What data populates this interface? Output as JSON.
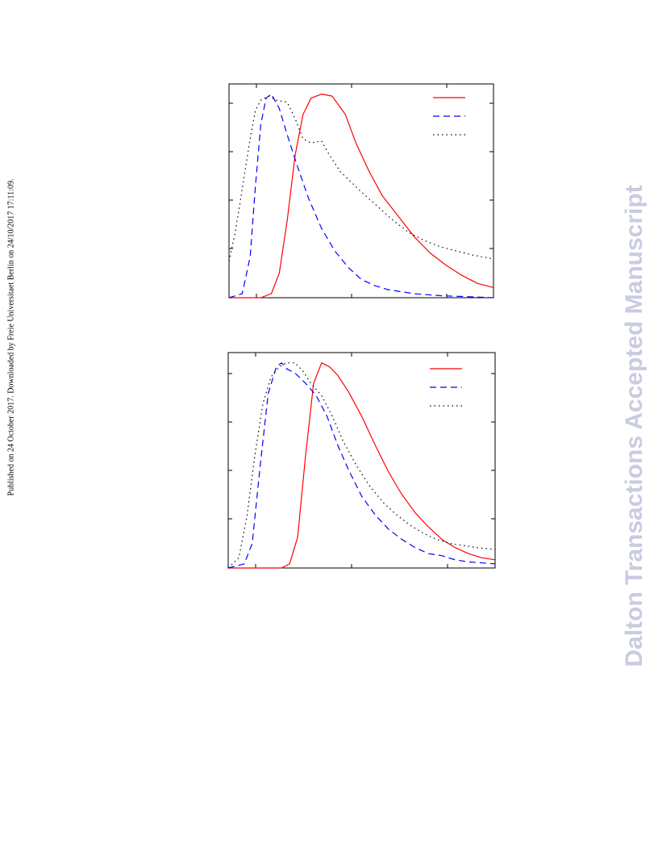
{
  "side_note": "Published on 24 October 2017. Downloaded by Freie Universitaet Berlin on 24/10/2017 17:11:09.",
  "watermark": "Dalton Transactions Accepted Manuscript",
  "watermark_color": "#c9cbe1",
  "chart_data": [
    {
      "type": "line",
      "title": "",
      "xlabel": "",
      "ylabel": "",
      "xlim": [
        0,
        10
      ],
      "ylim": [
        0,
        1.05
      ],
      "grid": false,
      "legend": "top-right",
      "series": [
        {
          "color": "#ff0000",
          "dash": "solid",
          "x": [
            0,
            1.2,
            1.6,
            1.9,
            2.2,
            2.5,
            2.8,
            3.1,
            3.5,
            3.9,
            4.4,
            4.8,
            5.3,
            5.8,
            6.4,
            7.0,
            7.6,
            8.2,
            8.8,
            9.4,
            10.0
          ],
          "y": [
            0,
            0,
            0.02,
            0.12,
            0.38,
            0.7,
            0.9,
            0.98,
            1.0,
            0.99,
            0.9,
            0.76,
            0.62,
            0.5,
            0.4,
            0.3,
            0.22,
            0.16,
            0.11,
            0.07,
            0.05
          ]
        },
        {
          "color": "#0000ff",
          "dash": "dashed",
          "x": [
            0,
            0.5,
            0.8,
            1.0,
            1.2,
            1.4,
            1.6,
            1.9,
            2.2,
            2.6,
            3.0,
            3.5,
            4.0,
            4.5,
            5.0,
            5.5,
            6.0,
            7.0,
            8.0,
            9.0,
            10.0
          ],
          "y": [
            0,
            0.02,
            0.2,
            0.55,
            0.85,
            0.98,
            1.0,
            0.93,
            0.8,
            0.64,
            0.49,
            0.34,
            0.23,
            0.15,
            0.09,
            0.06,
            0.04,
            0.02,
            0.01,
            0.005,
            0
          ]
        },
        {
          "color": "#000000",
          "dash": "dotted",
          "x": [
            0,
            0.2,
            0.4,
            0.6,
            0.8,
            1.0,
            1.2,
            1.5,
            1.8,
            2.2,
            2.5,
            2.8,
            3.1,
            3.5,
            3.8,
            4.2,
            4.6,
            5.0,
            5.6,
            6.2,
            6.8,
            7.4,
            8.0,
            8.6,
            9.2,
            10.0
          ],
          "y": [
            0.18,
            0.3,
            0.45,
            0.62,
            0.78,
            0.92,
            0.97,
            0.99,
            0.97,
            0.96,
            0.88,
            0.78,
            0.76,
            0.77,
            0.7,
            0.62,
            0.57,
            0.52,
            0.45,
            0.38,
            0.32,
            0.28,
            0.25,
            0.23,
            0.21,
            0.19
          ]
        }
      ]
    },
    {
      "type": "line",
      "title": "",
      "xlabel": "",
      "ylabel": "",
      "xlim": [
        0,
        10
      ],
      "ylim": [
        0,
        1.05
      ],
      "grid": false,
      "legend": "top-right",
      "series": [
        {
          "color": "#ff0000",
          "dash": "solid",
          "x": [
            0,
            2.0,
            2.3,
            2.6,
            2.9,
            3.2,
            3.5,
            3.8,
            4.1,
            4.5,
            5.0,
            5.5,
            6.0,
            6.5,
            7.0,
            7.5,
            8.0,
            8.5,
            9.0,
            9.5,
            10.0
          ],
          "y": [
            0,
            0,
            0.02,
            0.15,
            0.55,
            0.9,
            1.0,
            0.98,
            0.94,
            0.86,
            0.74,
            0.6,
            0.47,
            0.36,
            0.27,
            0.2,
            0.14,
            0.1,
            0.07,
            0.05,
            0.04
          ]
        },
        {
          "color": "#0000ff",
          "dash": "dashed",
          "x": [
            0,
            0.6,
            0.9,
            1.2,
            1.5,
            1.8,
            2.0,
            2.2,
            2.5,
            2.9,
            3.3,
            3.7,
            4.1,
            4.5,
            5.0,
            5.5,
            6.0,
            6.5,
            7.0,
            7.5,
            8.0,
            8.5,
            9.0,
            10.0
          ],
          "y": [
            0,
            0.02,
            0.12,
            0.5,
            0.85,
            0.98,
            1.0,
            0.97,
            0.95,
            0.9,
            0.84,
            0.74,
            0.6,
            0.48,
            0.35,
            0.26,
            0.19,
            0.14,
            0.1,
            0.07,
            0.06,
            0.04,
            0.03,
            0.02
          ]
        },
        {
          "color": "#000000",
          "dash": "dotted",
          "x": [
            0,
            0.4,
            0.7,
            1.0,
            1.3,
            1.6,
            1.9,
            2.2,
            2.5,
            2.8,
            3.1,
            3.5,
            3.9,
            4.3,
            4.8,
            5.3,
            5.8,
            6.3,
            6.8,
            7.3,
            7.8,
            8.3,
            8.8,
            9.3,
            10.0
          ],
          "y": [
            0,
            0.05,
            0.25,
            0.55,
            0.8,
            0.93,
            0.98,
            1.0,
            1.0,
            0.96,
            0.9,
            0.84,
            0.74,
            0.62,
            0.5,
            0.4,
            0.32,
            0.26,
            0.21,
            0.17,
            0.14,
            0.12,
            0.11,
            0.1,
            0.09
          ]
        }
      ]
    }
  ]
}
